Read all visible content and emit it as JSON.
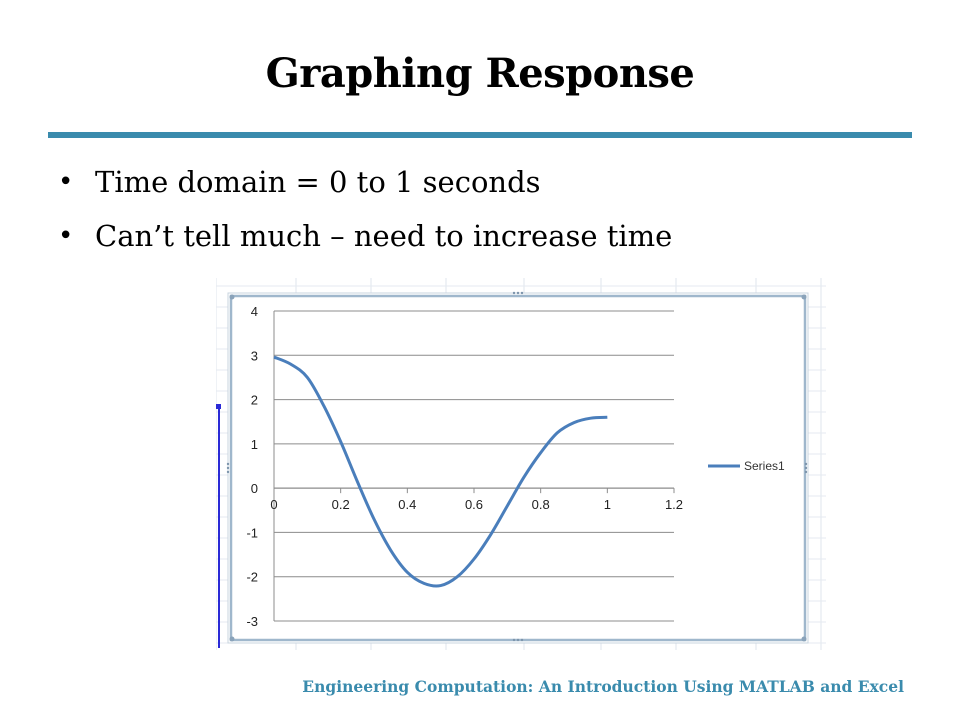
{
  "slide": {
    "title": "Graphing Response",
    "bullets": [
      "Time domain = 0 to 1 seconds",
      "Can’t tell much – need to increase time"
    ],
    "footer": "Engineering Computation: An Introduction Using MATLAB and Excel",
    "colors": {
      "accent": "#3a8bad",
      "series": "#4a7ebb"
    }
  },
  "chart_data": {
    "type": "line",
    "title": "",
    "xlabel": "",
    "ylabel": "",
    "xlim": [
      0,
      1.2
    ],
    "ylim": [
      -3,
      4
    ],
    "x_ticks": [
      "0",
      "0.2",
      "0.4",
      "0.6",
      "0.8",
      "1",
      "1.2"
    ],
    "y_ticks": [
      "4",
      "3",
      "2",
      "1",
      "0",
      "-1",
      "-2",
      "-3"
    ],
    "grid": "horizontal",
    "legend": "right",
    "series": [
      {
        "name": "Series1",
        "x": [
          0,
          0.05,
          0.1,
          0.15,
          0.2,
          0.25,
          0.3,
          0.35,
          0.4,
          0.45,
          0.5,
          0.55,
          0.6,
          0.65,
          0.7,
          0.75,
          0.8,
          0.85,
          0.9,
          0.95,
          1
        ],
        "y": [
          2.96,
          2.8,
          2.5,
          1.85,
          1.05,
          0.15,
          -0.7,
          -1.4,
          -1.9,
          -2.15,
          -2.2,
          -2.0,
          -1.6,
          -1.05,
          -0.4,
          0.25,
          0.8,
          1.25,
          1.48,
          1.58,
          1.6
        ]
      }
    ]
  }
}
